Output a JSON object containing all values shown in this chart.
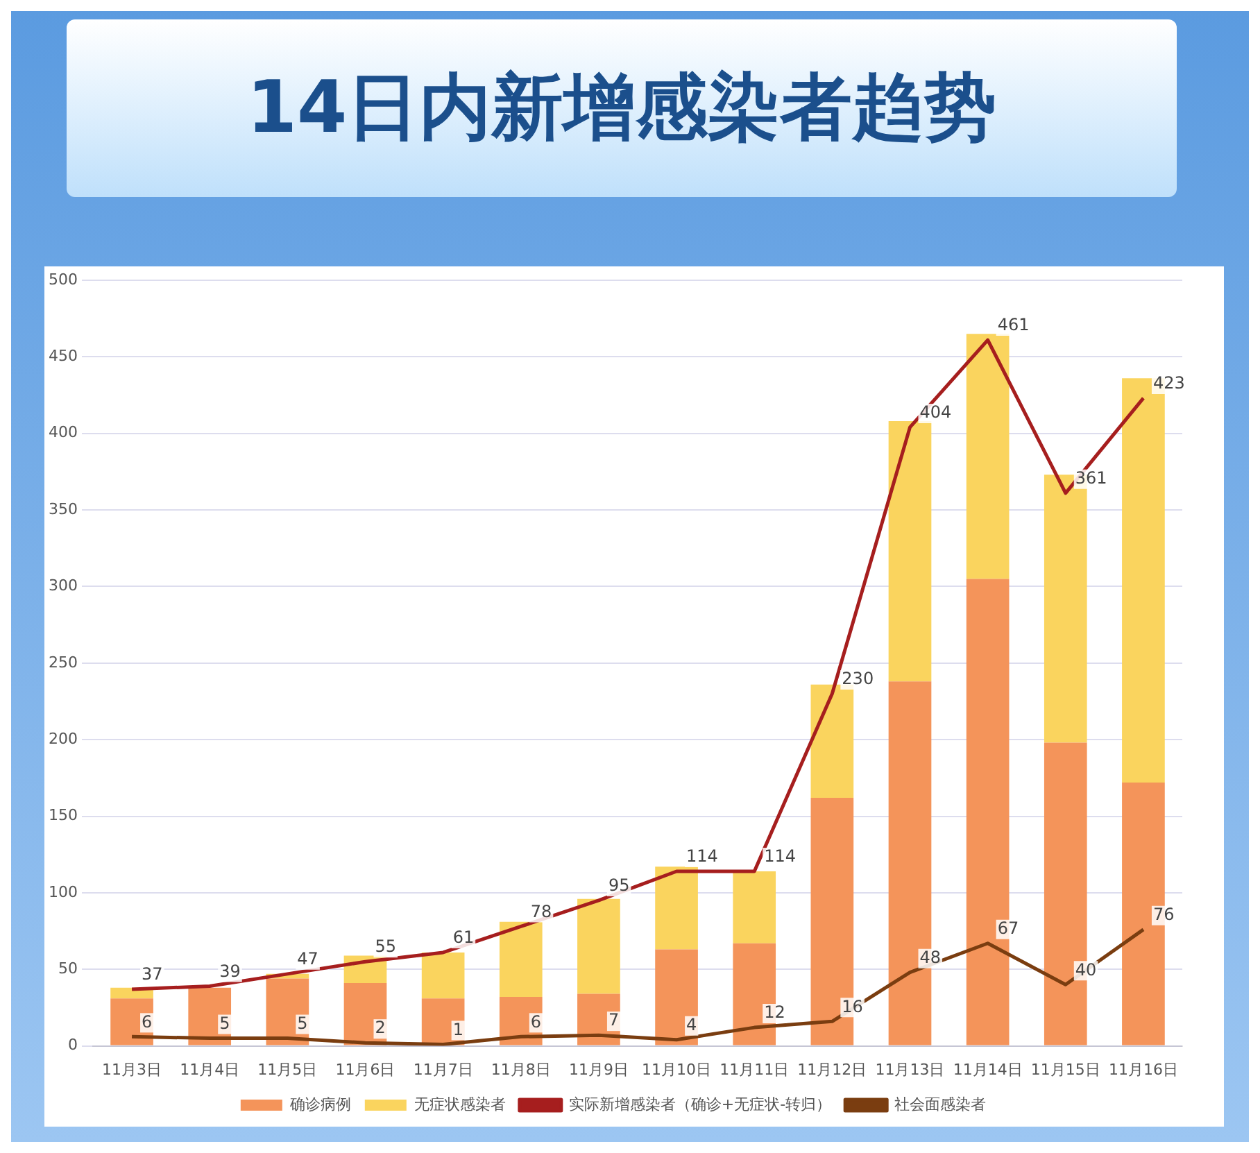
{
  "chart_data": {
    "type": "bar",
    "title": "14日内新增感染者趋势",
    "categories": [
      "11月3日",
      "11月4日",
      "11月5日",
      "11月6日",
      "11月7日",
      "11月8日",
      "11月9日",
      "11月10日",
      "11月11日",
      "11月12日",
      "11月13日",
      "11月14日",
      "11月15日",
      "11月16日"
    ],
    "series": [
      {
        "name": "确诊病例",
        "color": "#f4945a",
        "values": [
          31,
          38,
          44,
          41,
          31,
          32,
          34,
          63,
          67,
          162,
          238,
          305,
          198,
          172
        ]
      },
      {
        "name": "无症状感染者",
        "color": "#fad45e",
        "values": [
          7,
          null,
          3,
          18,
          30,
          49,
          62,
          54,
          47,
          74,
          170,
          160,
          175,
          264
        ]
      },
      {
        "name": "实际新增感染者（确诊+无症状-转归）",
        "type": "line",
        "color": "#a61e1e",
        "values": [
          37,
          39,
          47,
          55,
          61,
          78,
          95,
          114,
          114,
          230,
          404,
          461,
          361,
          423
        ],
        "value_labels": [
          "37",
          "39",
          "47",
          "55",
          "61",
          "78",
          "95",
          "114",
          "114",
          "230",
          "404",
          "461",
          "361",
          "423"
        ]
      },
      {
        "name": "社会面感染者",
        "type": "line",
        "color": "#7a3d10",
        "values": [
          6,
          5,
          5,
          2,
          1,
          6,
          7,
          4,
          12,
          16,
          48,
          67,
          40,
          76
        ],
        "value_labels": [
          "6",
          "5",
          "5",
          "2",
          "1",
          "6",
          "7",
          "4",
          "12",
          "16",
          "48",
          "67",
          "40",
          "76"
        ]
      }
    ],
    "stacked": true,
    "ylim": [
      0,
      500
    ],
    "yticks": [
      0,
      50,
      100,
      150,
      200,
      250,
      300,
      350,
      400,
      450,
      500
    ],
    "grid": "y",
    "legend": "bottom",
    "marker": "none",
    "line_style": "solid"
  }
}
